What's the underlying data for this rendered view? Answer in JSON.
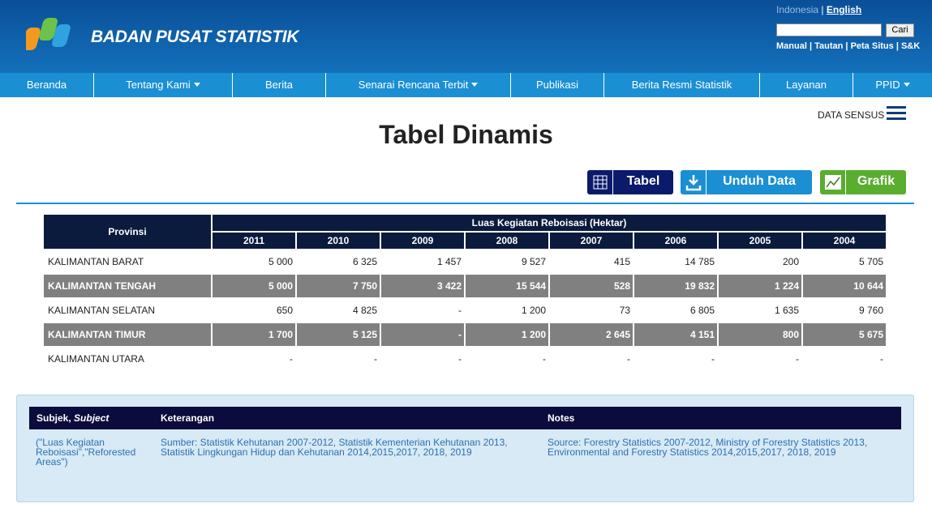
{
  "header": {
    "brand": "BADAN PUSAT STATISTIK",
    "lang_id": "Indonesia",
    "separator": "|",
    "lang_en": "English",
    "search_button": "Cari",
    "links": [
      "Manual",
      "Tautan",
      "Peta Situs",
      "S&K"
    ]
  },
  "nav": [
    "Beranda",
    "Tentang Kami",
    "Berita",
    "Senarai Rencana Terbit",
    "Publikasi",
    "Berita Resmi Statistik",
    "Layanan",
    "PPID"
  ],
  "data_sensus": "DATA SENSUS",
  "title": "Tabel Dinamis",
  "buttons": [
    "Tabel",
    "Unduh Data",
    "Grafik"
  ],
  "table": {
    "row_header": "Provinsi",
    "group_header": "Luas Kegiatan Reboisasi (Hektar)",
    "years": [
      "2011",
      "2010",
      "2009",
      "2008",
      "2007",
      "2006",
      "2005",
      "2004"
    ],
    "rows": [
      {
        "name": "KALIMANTAN BARAT",
        "values": [
          "5 000",
          "6 325",
          "1 457",
          "9 527",
          "415",
          "14 785",
          "200",
          "5 705"
        ]
      },
      {
        "name": "KALIMANTAN TENGAH",
        "values": [
          "5 000",
          "7 750",
          "3 422",
          "15 544",
          "528",
          "19 832",
          "1 224",
          "10 644"
        ]
      },
      {
        "name": "KALIMANTAN SELATAN",
        "values": [
          "650",
          "4 825",
          "-",
          "1 200",
          "73",
          "6 805",
          "1 635",
          "9 760"
        ]
      },
      {
        "name": "KALIMANTAN TIMUR",
        "values": [
          "1 700",
          "5 125",
          "-",
          "1 200",
          "2 645",
          "4 151",
          "800",
          "5 675"
        ]
      },
      {
        "name": "KALIMANTAN UTARA",
        "values": [
          "-",
          "-",
          "-",
          "-",
          "-",
          "-",
          "-",
          "-"
        ]
      }
    ]
  },
  "notes": {
    "subject_label": "Subjek,",
    "subject_label_en": "Subject",
    "keterangan_label": "Keterangan",
    "notes_label": "Notes",
    "subject": "(\"Luas Kegiatan Reboisasi\",\"Reforested Areas\")",
    "keterangan": "Sumber: Statistik Kehutanan 2007-2012, Statistik Kementerian Kehutanan 2013, Statistik Lingkungan Hidup dan Kehutanan 2014,2015,2017, 2018, 2019",
    "notes": "Source: Forestry Statistics 2007-2012, Ministry of Forestry Statistics 2013, Environmental and Forestry Statistics 2014,2015,2017, 2018, 2019"
  }
}
